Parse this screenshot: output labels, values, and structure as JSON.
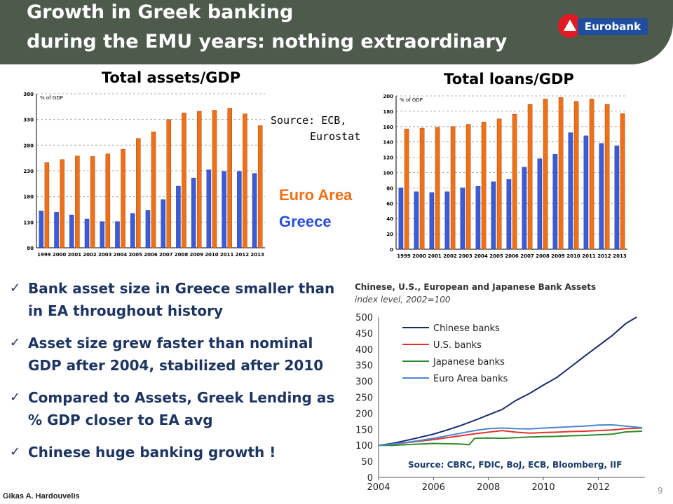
{
  "header": {
    "title_line1": "Growth in Greek banking",
    "title_line2": "during the EMU years: nothing extraordinary",
    "logo_text": "Eurobank",
    "bg_color": "#4d5a4c",
    "logo_red": "#e21b22",
    "logo_blue": "#1f4e9e"
  },
  "legend": {
    "euro_area": "Euro Area",
    "greece": "Greece",
    "euro_area_color": "#f07018",
    "greece_color": "#2b4fd6"
  },
  "source_note": {
    "line1": "Source: ECB,",
    "line2": "Eurostat"
  },
  "bullets": [
    {
      "text": "Bank asset size in Greece smaller than in EA throughout history"
    },
    {
      "text": "Asset size grew faster than nominal GDP after 2004, stabilized after 2010"
    },
    {
      "text": "Compared to Assets, Greek Lending as % GDP closer to EA avg"
    },
    {
      "text": "Chinese  huge banking growth !"
    }
  ],
  "footer": {
    "author": "Gikas A. Hardouvelis",
    "page": "9"
  },
  "chart_data": [
    {
      "type": "bar",
      "title": "Total assets/GDP",
      "unit_label": "% of GDP",
      "categories": [
        "1999",
        "2000",
        "2001",
        "2002",
        "2003",
        "2004",
        "2005",
        "2006",
        "2007",
        "2008",
        "2009",
        "2010",
        "2011",
        "2012",
        "2013"
      ],
      "ylim": [
        80,
        380
      ],
      "yticks": [
        80,
        130,
        180,
        230,
        280,
        330,
        380
      ],
      "grid": true,
      "series": [
        {
          "name": "Euro Area",
          "color": "#f07018",
          "values": [
            246,
            252,
            259,
            258,
            263,
            272,
            293,
            306,
            330,
            343,
            346,
            348,
            352,
            341,
            318
          ]
        },
        {
          "name": "Greece",
          "color": "#3c5bd8",
          "values": [
            152,
            149,
            144,
            136,
            131,
            131,
            147,
            153,
            174,
            200,
            216,
            232,
            229,
            229,
            225
          ]
        }
      ]
    },
    {
      "type": "bar",
      "title": "Total loans/GDP",
      "unit_label": "% of GDP",
      "categories": [
        "1999",
        "2000",
        "2001",
        "2002",
        "2003",
        "2004",
        "2005",
        "2006",
        "2007",
        "2008",
        "2009",
        "2010",
        "2011",
        "2012",
        "2013"
      ],
      "ylim": [
        0,
        200
      ],
      "yticks": [
        0,
        20,
        40,
        60,
        80,
        100,
        120,
        140,
        160,
        180,
        200
      ],
      "grid": true,
      "series": [
        {
          "name": "Euro Area",
          "color": "#f07018",
          "values": [
            157,
            158,
            159,
            160,
            163,
            166,
            170,
            176,
            189,
            196,
            198,
            193,
            196,
            189,
            177
          ]
        },
        {
          "name": "Greece",
          "color": "#3c5bd8",
          "values": [
            80,
            75,
            74,
            75,
            80,
            82,
            88,
            91,
            107,
            118,
            124,
            152,
            148,
            138,
            135
          ]
        }
      ]
    },
    {
      "type": "line",
      "title": "Chinese, U.S., European and Japanese Bank Assets",
      "subtitle": "index level, 2002=100",
      "source": "Source: CBRC, FDIC, BoJ, ECB, Bloomberg, IIF",
      "ylim": [
        0,
        500
      ],
      "yticks": [
        0,
        50,
        100,
        150,
        200,
        250,
        300,
        350,
        400,
        450,
        500
      ],
      "xlim": [
        2004,
        2013.7
      ],
      "xticks": [
        2004,
        2006,
        2008,
        2010,
        2012
      ],
      "legend_position": "top-left",
      "series": [
        {
          "name": "Chinese banks",
          "color": "#142a6b",
          "x": [
            2004,
            2004.5,
            2005,
            2005.5,
            2006,
            2006.5,
            2007,
            2007.5,
            2008,
            2008.5,
            2009,
            2009.5,
            2010,
            2010.5,
            2011,
            2011.5,
            2012,
            2012.5,
            2013,
            2013.4
          ],
          "y": [
            100,
            106,
            115,
            125,
            135,
            148,
            162,
            178,
            195,
            212,
            240,
            262,
            288,
            312,
            345,
            378,
            410,
            442,
            480,
            500
          ]
        },
        {
          "name": "U.S. banks",
          "color": "#e0342c",
          "x": [
            2004,
            2004.5,
            2005,
            2005.5,
            2006,
            2006.5,
            2007,
            2007.5,
            2008,
            2008.5,
            2009,
            2009.5,
            2010,
            2010.5,
            2011,
            2011.5,
            2012,
            2012.5,
            2013,
            2013.6
          ],
          "y": [
            100,
            104,
            108,
            113,
            118,
            124,
            130,
            136,
            141,
            146,
            141,
            138,
            140,
            141,
            143,
            144,
            146,
            148,
            152,
            154
          ]
        },
        {
          "name": "Japanese banks",
          "color": "#2f8a2a",
          "x": [
            2004,
            2004.5,
            2005,
            2005.5,
            2006,
            2006.5,
            2007,
            2007.3,
            2007.5,
            2008,
            2008.5,
            2009,
            2009.5,
            2010,
            2010.5,
            2011,
            2011.5,
            2012,
            2012.5,
            2013,
            2013.6
          ],
          "y": [
            100,
            100,
            102,
            104,
            106,
            105,
            104,
            102,
            122,
            123,
            122,
            124,
            126,
            127,
            128,
            130,
            131,
            133,
            135,
            142,
            144
          ]
        },
        {
          "name": "Euro Area banks",
          "color": "#4a86d0",
          "x": [
            2004,
            2004.5,
            2005,
            2005.5,
            2006,
            2006.5,
            2007,
            2007.5,
            2008,
            2008.5,
            2009,
            2009.5,
            2010,
            2010.5,
            2011,
            2011.5,
            2012,
            2012.5,
            2013,
            2013.6
          ],
          "y": [
            100,
            104,
            109,
            115,
            122,
            130,
            138,
            146,
            152,
            154,
            152,
            151,
            154,
            156,
            158,
            160,
            163,
            164,
            160,
            155
          ]
        }
      ]
    }
  ]
}
